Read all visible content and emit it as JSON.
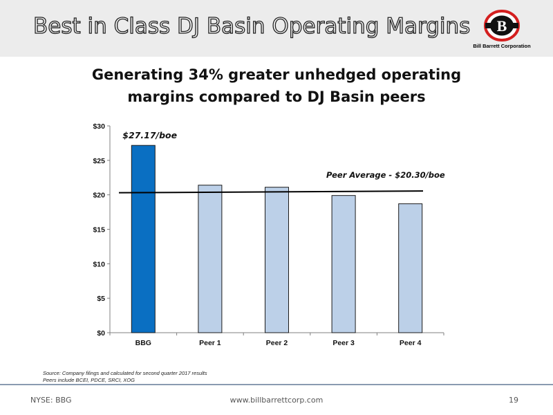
{
  "slide": {
    "title": "Best in Class DJ Basin Operating Margins",
    "subtitle_line1": "Generating 34% greater unhedged operating",
    "subtitle_line2": "margins compared to DJ Basin peers"
  },
  "logo": {
    "letter": "B",
    "company": "Bill Barrett Corporation",
    "icon": "bbg-logo-icon"
  },
  "chart_data": {
    "type": "bar",
    "categories": [
      "BBG",
      "Peer 1",
      "Peer 2",
      "Peer 3",
      "Peer 4"
    ],
    "values": [
      27.17,
      21.4,
      21.1,
      19.9,
      18.7
    ],
    "ylim": [
      0,
      30
    ],
    "ytick_values": [
      0,
      5,
      10,
      15,
      20,
      25,
      30
    ],
    "ytick_labels": [
      "$0",
      "$5",
      "$10",
      "$15",
      "$20",
      "$25",
      "$30"
    ],
    "bar_colors": [
      "#0a6fc2",
      "#bcd0e8",
      "#bcd0e8",
      "#bcd0e8",
      "#bcd0e8"
    ],
    "bar_edge_color": "#1a1a1a",
    "annotations": {
      "bbg_label": "$27.17/boe",
      "peer_average_label": "Peer Average - $20.30/boe"
    },
    "peer_average_line": {
      "start_value": 20.3,
      "end_value": 20.55
    },
    "grid": false,
    "legend": "none"
  },
  "source": {
    "line1": "Source:  Company filings and calculated for second quarter 2017 results",
    "line2": "Peers include BCEI, PDCE, SRCI, XOG"
  },
  "footer": {
    "ticker": "NYSE: BBG",
    "website": "www.billbarrettcorp.com",
    "page_number": "19"
  }
}
